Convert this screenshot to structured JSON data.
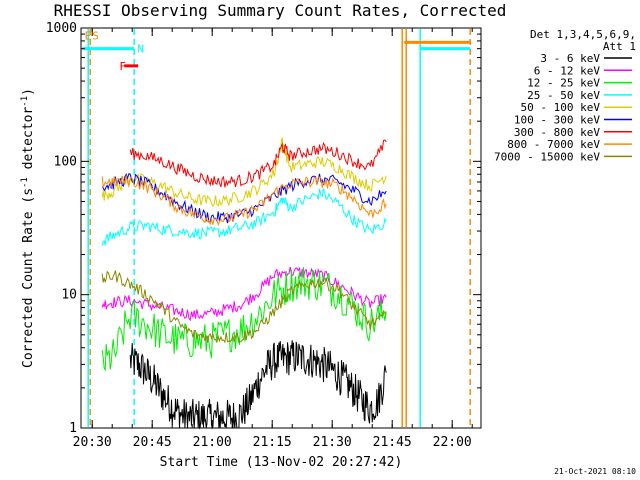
{
  "chart_data": {
    "type": "line",
    "title": "RHESSI Observing Summary Count Rates, Corrected",
    "xlabel": "Start Time (13-Nov-02 20:27:42)",
    "ylabel_main": "Corrected Count Rate (s",
    "ylabel_sup1": "-1",
    "ylabel_mid": " detector",
    "ylabel_sup2": "-1",
    "ylabel_end": ")",
    "stamp": "21-Oct-2021 08:10",
    "yscale": "log",
    "ylim": [
      1,
      1000
    ],
    "xlim_minutes": [
      20.2,
      21.9
    ],
    "x_ticks": [
      {
        "label": "20:30",
        "value": 30.5
      },
      {
        "label": "20:45",
        "value": 45.5
      },
      {
        "label": "21:00",
        "value": 60.5
      },
      {
        "label": "21:15",
        "value": 75.5
      },
      {
        "label": "21:30",
        "value": 90.5
      },
      {
        "label": "21:45",
        "value": 105.5
      },
      {
        "label": "22:00",
        "value": 120.5
      }
    ],
    "x_range": [
      27.7,
      127.7
    ],
    "y_ticks": [
      {
        "label": "1",
        "value": 1
      },
      {
        "label": "10",
        "value": 10
      },
      {
        "label": "100",
        "value": 100
      },
      {
        "label": "1000",
        "value": 1000
      }
    ],
    "legend_header": [
      "Det 1,3,4,5,6,9,",
      "Att 1"
    ],
    "series": [
      {
        "name": "3 - 6 keV",
        "color": "#000000",
        "x": [
          40,
          42,
          44,
          46,
          48,
          50,
          52,
          54,
          56,
          58,
          60,
          62,
          64,
          66,
          68,
          70,
          72,
          74,
          76,
          78,
          80,
          82,
          84,
          86,
          88,
          90,
          92,
          94,
          96,
          98,
          100,
          102,
          104
        ],
        "y": [
          3.2,
          3.0,
          2.6,
          2.2,
          1.8,
          1.5,
          1.3,
          1.2,
          1.2,
          1.2,
          1.2,
          1.2,
          1.2,
          1.2,
          1.3,
          1.6,
          2.2,
          2.8,
          3.2,
          3.3,
          3.4,
          3.4,
          3.3,
          3.2,
          3.0,
          2.8,
          2.5,
          2.2,
          1.9,
          1.6,
          1.4,
          1.6,
          2.6
        ]
      },
      {
        "name": "6 - 12 keV",
        "color": "#ff00ff",
        "x": [
          33,
          36,
          40,
          44,
          48,
          52,
          56,
          60,
          64,
          68,
          72,
          76,
          80,
          84,
          88,
          92,
          96,
          100,
          104
        ],
        "y": [
          8.5,
          8.8,
          9.0,
          8.5,
          8.0,
          7.5,
          7.0,
          7.2,
          7.8,
          8.5,
          10.5,
          14.0,
          15.0,
          14.5,
          14.0,
          12.0,
          10.0,
          8.5,
          9.5
        ]
      },
      {
        "name": "12 - 25 keV",
        "color": "#00ee00",
        "x": [
          33,
          36,
          40,
          44,
          48,
          52,
          56,
          60,
          64,
          68,
          72,
          76,
          80,
          84,
          88,
          92,
          96,
          100,
          104
        ],
        "y": [
          3.0,
          3.5,
          7.0,
          6.0,
          5.0,
          4.5,
          4.5,
          4.5,
          5.0,
          5.5,
          7.0,
          10.0,
          12.0,
          12.5,
          12.0,
          10.5,
          8.0,
          6.0,
          7.5
        ]
      },
      {
        "name": "25 - 50 keV",
        "color": "#00ffff",
        "x": [
          33,
          36,
          40,
          44,
          48,
          52,
          56,
          60,
          64,
          68,
          72,
          76,
          78,
          80,
          84,
          88,
          92,
          96,
          100,
          104
        ],
        "y": [
          25,
          28,
          32,
          33,
          31,
          30,
          29,
          29,
          30,
          32,
          35,
          42,
          52,
          45,
          52,
          58,
          48,
          36,
          30,
          35
        ]
      },
      {
        "name": "50 - 100 keV",
        "color": "#ddcc00",
        "x": [
          33,
          36,
          40,
          44,
          48,
          52,
          56,
          60,
          64,
          68,
          72,
          76,
          78,
          80,
          84,
          88,
          92,
          96,
          100,
          104
        ],
        "y": [
          55,
          60,
          75,
          72,
          65,
          57,
          52,
          50,
          51,
          55,
          63,
          82,
          140,
          90,
          95,
          100,
          90,
          75,
          65,
          78
        ]
      },
      {
        "name": "100 - 300 keV",
        "color": "#0000ff",
        "x": [
          33,
          36,
          40,
          44,
          48,
          52,
          56,
          60,
          64,
          68,
          72,
          76,
          80,
          84,
          88,
          92,
          96,
          100,
          104
        ],
        "y": [
          65,
          68,
          75,
          68,
          58,
          48,
          42,
          38,
          38,
          40,
          45,
          55,
          65,
          72,
          73,
          70,
          60,
          50,
          60
        ]
      },
      {
        "name": "300 - 800 keV",
        "color": "#ff0000",
        "x": [
          40,
          44,
          48,
          52,
          56,
          60,
          64,
          68,
          72,
          76,
          78,
          80,
          84,
          88,
          92,
          96,
          100,
          104
        ],
        "y": [
          115,
          110,
          100,
          88,
          78,
          72,
          70,
          72,
          80,
          95,
          130,
          110,
          118,
          125,
          115,
          100,
          90,
          140
        ]
      },
      {
        "name": "800 - 7000 keV",
        "color": "#ff8800",
        "x": [
          33,
          36,
          40,
          44,
          48,
          52,
          56,
          60,
          64,
          68,
          72,
          76,
          80,
          84,
          88,
          92,
          96,
          100,
          104
        ],
        "y": [
          70,
          70,
          72,
          65,
          55,
          45,
          40,
          37,
          37,
          40,
          45,
          58,
          68,
          70,
          70,
          65,
          52,
          40,
          48
        ]
      },
      {
        "name": "7000 - 15000 keV",
        "color": "#888800",
        "x": [
          33,
          36,
          40,
          44,
          48,
          52,
          56,
          60,
          64,
          68,
          72,
          76,
          80,
          84,
          88,
          92,
          96,
          100,
          104
        ],
        "y": [
          13,
          14,
          12,
          10,
          8,
          6,
          5,
          4.8,
          4.8,
          4.8,
          5.5,
          7.5,
          10.5,
          12,
          12.5,
          11,
          8,
          6,
          7
        ]
      }
    ],
    "vertical_lines": [
      {
        "x": 29.5,
        "color": "#00ffff",
        "style": "solid"
      },
      {
        "x": 30.0,
        "color": "#ff8800",
        "style": "dashed"
      },
      {
        "x": 41.0,
        "color": "#00ffff",
        "style": "dashed"
      },
      {
        "x": 108.0,
        "color": "#ff8800",
        "style": "solid"
      },
      {
        "x": 109.0,
        "color": "#ff8800",
        "style": "solid"
      },
      {
        "x": 112.5,
        "color": "#00ffff",
        "style": "solid"
      },
      {
        "x": 125.0,
        "color": "#ff8800",
        "style": "dashed"
      }
    ],
    "top_bars": [
      {
        "x0": 28.0,
        "x1": 41.0,
        "y": 700,
        "color": "#00ffff"
      },
      {
        "x0": 108.5,
        "x1": 125.0,
        "y": 780,
        "color": "#ff8800"
      },
      {
        "x0": 112.5,
        "x1": 125.0,
        "y": 700,
        "color": "#00ffff"
      },
      {
        "x0": 38.5,
        "x1": 42.0,
        "y": 520,
        "color": "#ff0000"
      }
    ],
    "flag_labels": [
      {
        "text": "E",
        "x": 28.6,
        "y": 880,
        "color": "#ff8800"
      },
      {
        "text": "S",
        "x": 30.5,
        "y": 880,
        "color": "#ff8800"
      },
      {
        "text": "N",
        "x": 41.8,
        "y": 700,
        "color": "#00ffff"
      },
      {
        "text": "F",
        "x": 37.3,
        "y": 520,
        "color": "#ff0000"
      }
    ]
  }
}
